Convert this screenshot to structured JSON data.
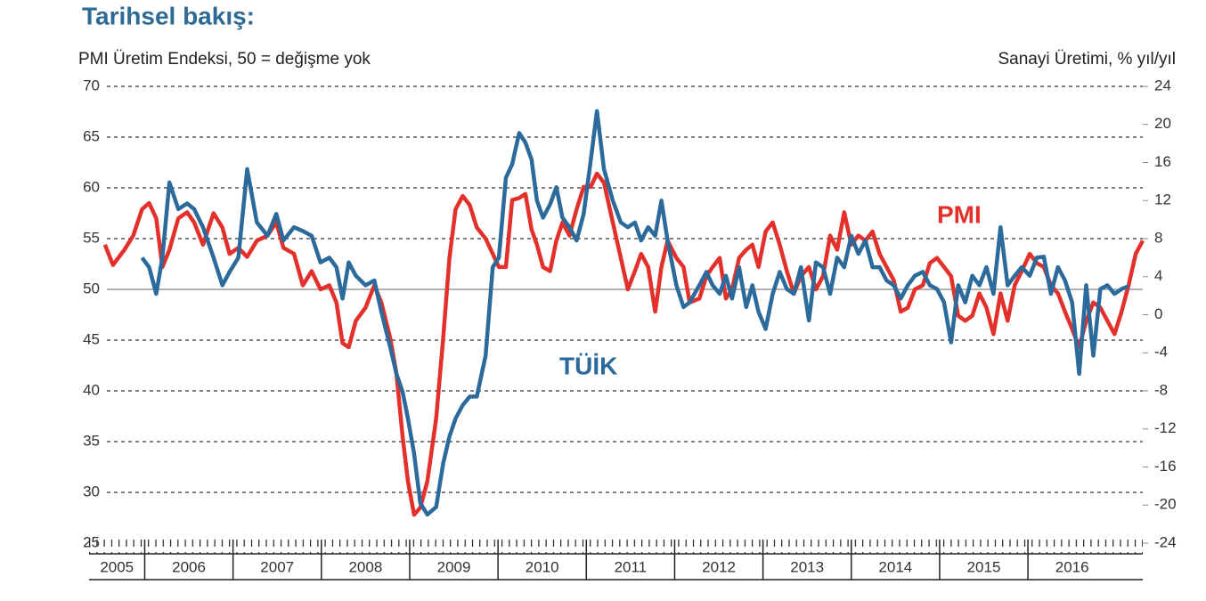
{
  "chart_data": {
    "type": "line",
    "title": "Tarihsel bakış:",
    "y_label": "PMI Üretim Endeksi, 50 = değişme yok",
    "y2_label": "Sanayi Üretimi, % yıl/yıl",
    "xlim": [
      2005.37,
      2017.3
    ],
    "xticks": [
      2005,
      2006,
      2007,
      2008,
      2009,
      2010,
      2011,
      2012,
      2013,
      2014,
      2015,
      2016
    ],
    "ylim": [
      25,
      70
    ],
    "yticks": [
      25,
      30,
      35,
      40,
      45,
      50,
      55,
      60,
      65,
      70
    ],
    "y2lim": [
      -24,
      24
    ],
    "y2ticks": [
      -24,
      -20,
      -16,
      -12,
      -8,
      -4,
      0,
      4,
      8,
      12,
      16,
      20,
      24
    ],
    "grid": true,
    "reference_line": 50,
    "x": [
      2005.55,
      2005.64,
      2005.77,
      2005.87,
      2005.97,
      2006.05,
      2006.13,
      2006.2,
      2006.28,
      2006.38,
      2006.48,
      2006.56,
      2006.66,
      2006.78,
      2006.88,
      2006.96,
      2007.06,
      2007.16,
      2007.27,
      2007.39,
      2007.49,
      2007.57,
      2007.69,
      2007.79,
      2007.89,
      2007.99,
      2008.09,
      2008.17,
      2008.24,
      2008.31,
      2008.39,
      2008.5,
      2008.6,
      2008.68,
      2008.78,
      2008.85,
      2008.92,
      2008.98,
      2009.05,
      2009.12,
      2009.2,
      2009.3,
      2009.38,
      2009.45,
      2009.52,
      2009.6,
      2009.68,
      2009.76,
      2009.86,
      2009.94,
      2010.01,
      2010.09,
      2010.16,
      2010.24,
      2010.31,
      2010.38,
      2010.44,
      2010.51,
      2010.59,
      2010.66,
      2010.73,
      2010.81,
      2010.89,
      2010.97,
      2011.05,
      2011.12,
      2011.2,
      2011.3,
      2011.39,
      2011.47,
      2011.55,
      2011.62,
      2011.7,
      2011.78,
      2011.85,
      2011.92,
      2012.02,
      2012.1,
      2012.17,
      2012.28,
      2012.36,
      2012.43,
      2012.51,
      2012.58,
      2012.65,
      2012.73,
      2012.81,
      2012.88,
      2012.95,
      2013.03,
      2013.11,
      2013.19,
      2013.27,
      2013.35,
      2013.43,
      2013.52,
      2013.6,
      2013.68,
      2013.76,
      2013.84,
      2013.92,
      2014.0,
      2014.08,
      2014.16,
      2014.24,
      2014.32,
      2014.4,
      2014.48,
      2014.56,
      2014.64,
      2014.72,
      2014.81,
      2014.89,
      2014.97,
      2015.05,
      2015.13,
      2015.21,
      2015.29,
      2015.37,
      2015.45,
      2015.53,
      2015.61,
      2015.69,
      2015.77,
      2015.85,
      2015.93,
      2016.02,
      2016.1,
      2016.18,
      2016.26,
      2016.34,
      2016.42,
      2016.5,
      2016.58,
      2016.66,
      2016.74,
      2016.82,
      2016.9,
      2016.98,
      2017.06,
      2017.14,
      2017.22,
      2017.3
    ],
    "series": [
      {
        "name": "PMI",
        "color": "#e3302b",
        "axis": "y",
        "values": [
          54.4,
          52.4,
          53.9,
          55.3,
          57.9,
          58.5,
          57.0,
          52.2,
          53.9,
          57.0,
          57.6,
          56.6,
          54.4,
          57.5,
          56.1,
          53.5,
          54.1,
          53.2,
          54.8,
          55.3,
          56.6,
          54.1,
          53.5,
          50.4,
          51.8,
          50.0,
          50.4,
          48.7,
          44.7,
          44.3,
          46.9,
          48.2,
          50.4,
          48.7,
          45.2,
          41.7,
          35.5,
          31.1,
          27.8,
          28.5,
          31.1,
          37.3,
          45.2,
          53.1,
          57.9,
          59.2,
          58.3,
          56.1,
          55.0,
          53.5,
          52.2,
          52.2,
          58.8,
          59.0,
          59.4,
          55.9,
          54.4,
          52.2,
          51.8,
          54.8,
          56.6,
          55.3,
          57.9,
          60.1,
          60.1,
          61.4,
          60.5,
          56.6,
          53.1,
          50.0,
          51.8,
          53.5,
          52.2,
          47.8,
          52.2,
          54.8,
          53.1,
          52.2,
          48.7,
          49.1,
          51.3,
          52.2,
          53.1,
          49.1,
          50.0,
          53.1,
          53.9,
          54.4,
          52.2,
          55.7,
          56.6,
          54.4,
          51.8,
          49.6,
          51.3,
          52.2,
          50.0,
          51.3,
          55.3,
          53.9,
          57.6,
          54.4,
          55.3,
          54.8,
          55.7,
          53.5,
          52.2,
          50.9,
          47.8,
          48.2,
          50.0,
          50.4,
          52.6,
          53.1,
          52.2,
          51.3,
          47.4,
          46.9,
          47.4,
          49.6,
          48.2,
          45.6,
          49.6,
          46.9,
          50.4,
          51.8,
          53.5,
          52.6,
          52.2,
          50.4,
          49.6,
          47.8,
          46.1,
          44.3,
          46.9,
          48.7,
          48.2,
          46.9,
          45.6,
          47.8,
          50.4,
          53.5,
          54.8
        ]
      },
      {
        "name": "TÜİK",
        "color": "#2b6a9b",
        "axis": "y2",
        "values": [
          null,
          null,
          null,
          null,
          6.0,
          5.0,
          2.2,
          6.0,
          13.9,
          11.1,
          11.7,
          11.1,
          9.2,
          6.0,
          3.1,
          4.5,
          6.0,
          15.3,
          9.7,
          8.3,
          10.6,
          7.8,
          9.2,
          8.8,
          8.3,
          5.5,
          6.0,
          5.0,
          1.7,
          5.5,
          4.1,
          3.1,
          3.6,
          0.3,
          -3.4,
          -6.2,
          -8.1,
          -10.9,
          -14.6,
          -19.8,
          -21.0,
          -20.2,
          -15.6,
          -12.8,
          -10.9,
          -9.5,
          -8.6,
          -8.6,
          -4.3,
          5.0,
          6.0,
          14.4,
          15.8,
          19.1,
          18.1,
          16.3,
          12.0,
          10.2,
          11.6,
          13.4,
          10.2,
          9.2,
          7.8,
          10.6,
          16.2,
          21.4,
          15.3,
          12.0,
          9.7,
          9.2,
          9.7,
          7.8,
          9.2,
          8.3,
          12.0,
          7.8,
          3.1,
          0.8,
          1.3,
          3.1,
          4.5,
          3.1,
          2.2,
          4.1,
          1.7,
          5.0,
          0.8,
          3.1,
          0.3,
          -1.5,
          2.2,
          4.5,
          2.7,
          2.2,
          5.0,
          -0.6,
          5.5,
          5.0,
          2.2,
          6.0,
          5.0,
          8.3,
          6.4,
          7.8,
          5.0,
          5.0,
          3.6,
          3.1,
          1.7,
          3.1,
          4.1,
          4.5,
          3.1,
          2.7,
          1.3,
          -2.9,
          3.1,
          1.3,
          4.1,
          3.1,
          5.0,
          2.2,
          9.2,
          3.1,
          4.1,
          5.0,
          4.1,
          6.0,
          6.1,
          2.2,
          5.0,
          3.6,
          1.3,
          -6.2,
          3.1,
          -4.3,
          2.7,
          3.1,
          2.2,
          2.7,
          3.0,
          null,
          null
        ]
      }
    ]
  }
}
